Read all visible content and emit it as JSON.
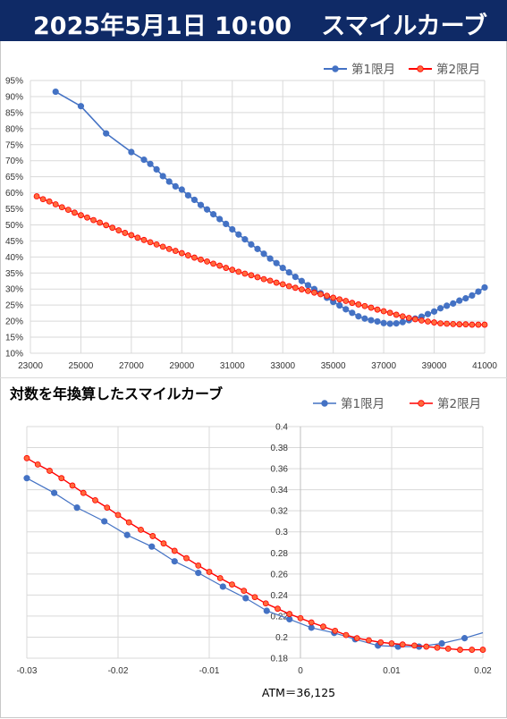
{
  "header": {
    "date": "2025年5月1日 10:00",
    "title": "スマイルカーブ"
  },
  "colors": {
    "banner": "#0f2a66",
    "series1": "#4472c4",
    "series2": "#ff0000",
    "series2_fill": "#ff6a3d",
    "grid": "#d9d9d9"
  },
  "chart_data": [
    {
      "type": "line",
      "title": "",
      "xlabel": "",
      "ylabel": "",
      "xlim": [
        23000,
        41000
      ],
      "ylim": [
        10,
        95
      ],
      "x_ticks": [
        "23000",
        "25000",
        "27000",
        "29000",
        "31000",
        "33000",
        "35000",
        "37000",
        "39000",
        "41000"
      ],
      "y_ticks": [
        "10%",
        "15%",
        "20%",
        "25%",
        "30%",
        "35%",
        "40%",
        "45%",
        "50%",
        "55%",
        "60%",
        "65%",
        "70%",
        "75%",
        "80%",
        "85%",
        "90%",
        "95%"
      ],
      "legend_position": "top-right",
      "grid": true,
      "series": [
        {
          "name": "第1限月",
          "x": [
            24000,
            25000,
            26000,
            27000,
            27500,
            27750,
            28000,
            28250,
            28500,
            28750,
            29000,
            29250,
            29500,
            29750,
            30000,
            30250,
            30500,
            30750,
            31000,
            31250,
            31500,
            31750,
            32000,
            32250,
            32500,
            32750,
            33000,
            33250,
            33500,
            33750,
            34000,
            34250,
            34500,
            34750,
            35000,
            35250,
            35500,
            35750,
            36000,
            36250,
            36500,
            36750,
            37000,
            37250,
            37500,
            37750,
            38000,
            38250,
            38500,
            38750,
            39000,
            39250,
            39500,
            39750,
            40000,
            40250,
            40500,
            40750,
            41000
          ],
          "values": [
            91.5,
            87,
            78.5,
            72.7,
            70.3,
            69,
            67.3,
            65.2,
            63.5,
            62,
            61,
            59.2,
            57.8,
            56.2,
            54.8,
            53.3,
            51.8,
            50.3,
            48.6,
            47,
            45.5,
            43.9,
            42.5,
            41,
            39.5,
            38.1,
            36.6,
            35.2,
            33.8,
            32.5,
            31.2,
            30,
            28.7,
            27.3,
            26,
            24.9,
            23.7,
            22.6,
            21.5,
            20.8,
            20.3,
            19.9,
            19.4,
            19.2,
            19.3,
            19.7,
            20.3,
            20.8,
            21.4,
            22.2,
            23,
            24,
            24.8,
            25.5,
            26.4,
            27.1,
            28,
            29.2,
            30.5
          ]
        },
        {
          "name": "第2限月",
          "x": [
            23250,
            23500,
            23750,
            24000,
            24250,
            24500,
            24750,
            25000,
            25250,
            25500,
            25750,
            26000,
            26250,
            26500,
            26750,
            27000,
            27250,
            27500,
            27750,
            28000,
            28250,
            28500,
            28750,
            29000,
            29250,
            29500,
            29750,
            30000,
            30250,
            30500,
            30750,
            31000,
            31250,
            31500,
            31750,
            32000,
            32250,
            32500,
            32750,
            33000,
            33250,
            33500,
            33750,
            34000,
            34250,
            34500,
            34750,
            35000,
            35250,
            35500,
            35750,
            36000,
            36250,
            36500,
            36750,
            37000,
            37250,
            37500,
            37750,
            38000,
            38250,
            38500,
            38750,
            39000,
            39250,
            39500,
            39750,
            40000,
            40250,
            40500,
            40750,
            41000
          ],
          "values": [
            58.9,
            58,
            57.3,
            56.4,
            55.5,
            54.7,
            53.8,
            53,
            52.3,
            51.5,
            50.7,
            49.9,
            49.1,
            48.3,
            47.5,
            46.8,
            46,
            45.3,
            44.6,
            43.9,
            43.2,
            42.5,
            41.9,
            41.2,
            40.5,
            39.8,
            39.2,
            38.6,
            37.9,
            37.3,
            36.6,
            36,
            35.4,
            34.8,
            34.3,
            33.7,
            33.1,
            32.6,
            32,
            31.5,
            30.9,
            30.4,
            29.9,
            29.4,
            28.9,
            28.4,
            27.9,
            27.3,
            26.8,
            26.3,
            25.7,
            25.2,
            24.7,
            24.2,
            23.6,
            23.1,
            22.6,
            22,
            21.5,
            21,
            20.6,
            20.2,
            19.9,
            19.6,
            19.3,
            19.2,
            19.1,
            19,
            19,
            18.9,
            18.9,
            18.9
          ]
        }
      ]
    },
    {
      "type": "line",
      "title": "対数を年換算したスマイルカーブ",
      "xlabel": "ATM＝36,125",
      "ylabel": "",
      "xlim": [
        -0.03,
        0.02
      ],
      "ylim": [
        0.18,
        0.4
      ],
      "x_ticks": [
        "-0.03",
        "-0.02",
        "-0.01",
        "0",
        "0.01",
        "0.02"
      ],
      "y_ticks": [
        "0.18",
        "0.2",
        "0.22",
        "0.24",
        "0.26",
        "0.28",
        "0.3",
        "0.32",
        "0.34",
        "0.36",
        "0.38",
        "0.4"
      ],
      "legend_position": "top-right",
      "grid": true,
      "series": [
        {
          "name": "第1限月",
          "x": [
            -0.03,
            -0.027,
            -0.0245,
            -0.0215,
            -0.019,
            -0.0163,
            -0.0138,
            -0.0112,
            -0.0085,
            -0.006,
            -0.0037,
            -0.0012,
            0.0012,
            0.0037,
            0.006,
            0.0085,
            0.0107,
            0.013,
            0.0155,
            0.018
          ],
          "values": [
            0.351,
            0.337,
            0.323,
            0.31,
            0.297,
            0.286,
            0.272,
            0.261,
            0.248,
            0.237,
            0.225,
            0.217,
            0.209,
            0.204,
            0.198,
            0.192,
            0.191,
            0.191,
            0.194,
            0.199
          ]
        },
        {
          "name": "第2限月",
          "x": [
            -0.03,
            -0.0288,
            -0.0275,
            -0.0262,
            -0.025,
            -0.0238,
            -0.0225,
            -0.0212,
            -0.02,
            -0.0188,
            -0.0175,
            -0.0162,
            -0.015,
            -0.0138,
            -0.0125,
            -0.0112,
            -0.01,
            -0.0088,
            -0.0075,
            -0.0062,
            -0.005,
            -0.0038,
            -0.0025,
            -0.0012,
            0,
            0.0012,
            0.0025,
            0.0038,
            0.005,
            0.0062,
            0.0075,
            0.0088,
            0.01,
            0.0112,
            0.0125,
            0.0138,
            0.015,
            0.0162,
            0.0175,
            0.0188,
            0.02
          ],
          "values": [
            0.37,
            0.364,
            0.358,
            0.351,
            0.344,
            0.337,
            0.33,
            0.323,
            0.316,
            0.309,
            0.302,
            0.296,
            0.289,
            0.282,
            0.275,
            0.268,
            0.262,
            0.256,
            0.25,
            0.244,
            0.238,
            0.232,
            0.227,
            0.222,
            0.218,
            0.214,
            0.21,
            0.206,
            0.202,
            0.199,
            0.197,
            0.195,
            0.194,
            0.193,
            0.192,
            0.191,
            0.19,
            0.189,
            0.188,
            0.188,
            0.188
          ]
        }
      ]
    }
  ]
}
